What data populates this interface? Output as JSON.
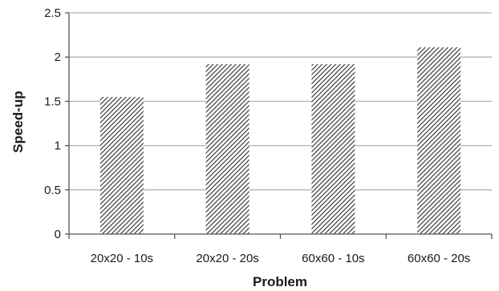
{
  "chart_data": {
    "type": "bar",
    "title": "",
    "xlabel": "Problem",
    "ylabel": "Speed-up",
    "categories": [
      "20x20 - 10s",
      "20x20 - 20s",
      "60x60 - 10s",
      "60x60 - 20s"
    ],
    "values": [
      1.55,
      1.92,
      1.92,
      2.11
    ],
    "ylim": [
      0,
      2.5
    ],
    "yticks": [
      "0",
      "0.5",
      "1",
      "1.5",
      "2",
      "2.5"
    ],
    "grid": "horizontal",
    "legend": "none",
    "colors": {
      "bar_hatch": "#3a3a3a",
      "bar_fill": "#ffffff",
      "grid": "#b3b3b3",
      "axis": "#555555"
    }
  }
}
